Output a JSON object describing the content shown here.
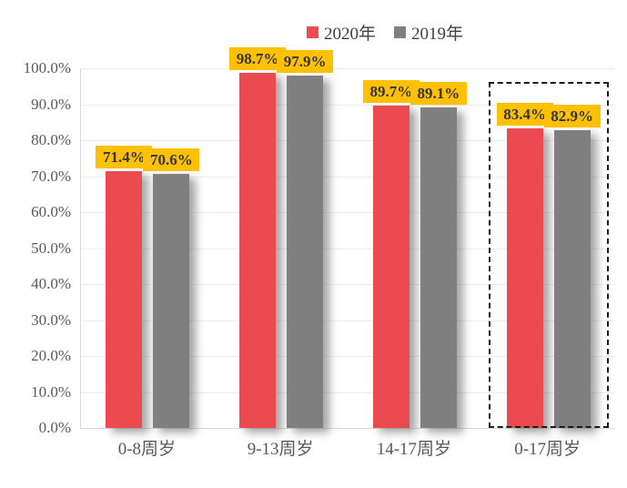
{
  "legend": {
    "items": [
      {
        "label": "2020年",
        "color": "#EA4A50"
      },
      {
        "label": "2019年",
        "color": "#7F7F7F"
      }
    ]
  },
  "chart_data": {
    "type": "bar",
    "title": "",
    "xlabel": "",
    "ylabel": "",
    "categories": [
      "0-8周岁",
      "9-13周岁",
      "14-17周岁",
      "0-17周岁"
    ],
    "series": [
      {
        "name": "2020年",
        "color": "#EA4A50",
        "values": [
          71.4,
          98.7,
          89.7,
          83.4
        ],
        "data_labels": [
          "71.4%",
          "98.7%",
          "89.7%",
          "83.4%"
        ]
      },
      {
        "name": "2019年",
        "color": "#7F7F7F",
        "values": [
          70.6,
          97.9,
          89.1,
          82.9
        ],
        "data_labels": [
          "70.6%",
          "97.9%",
          "89.1%",
          "82.9%"
        ]
      }
    ],
    "ylim": [
      0,
      100
    ],
    "ytick_step": 10,
    "ytick_labels": [
      "0.0%",
      "10.0%",
      "20.0%",
      "30.0%",
      "40.0%",
      "50.0%",
      "60.0%",
      "70.0%",
      "80.0%",
      "90.0%",
      "100.0%"
    ],
    "grid": true,
    "legend_position": "top-center",
    "datalabel_bg": "#FFC000",
    "highlight": {
      "category": "0-17周岁",
      "category_index": 3,
      "style": "dashed-box"
    }
  }
}
